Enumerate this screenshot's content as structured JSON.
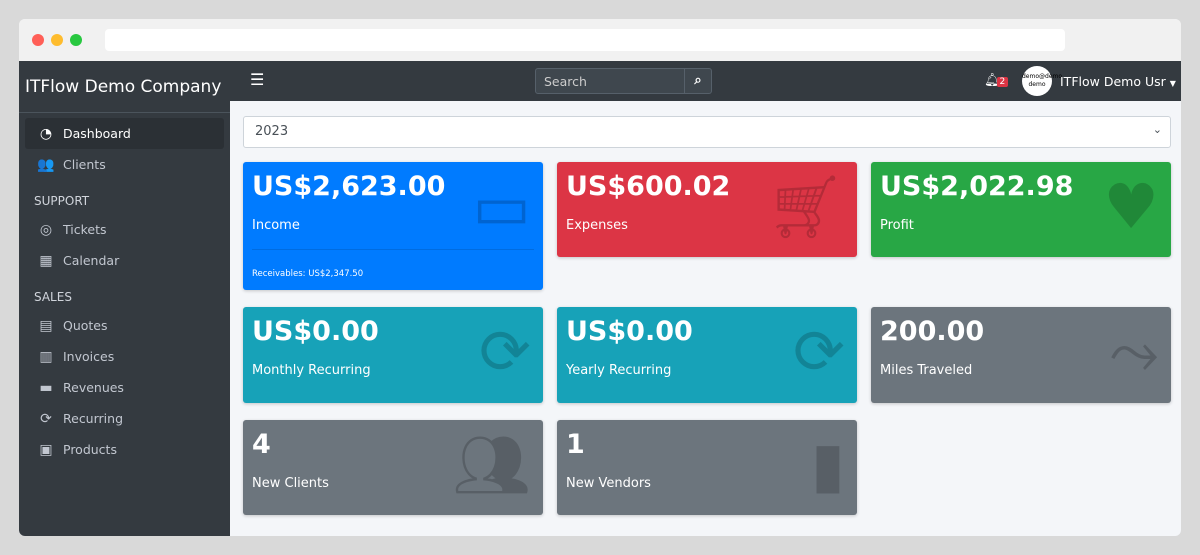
{
  "sidebar": {
    "brand": "ITFlow Demo Company",
    "items": [
      {
        "label": "Dashboard",
        "icon": "tachometer-icon"
      },
      {
        "label": "Clients",
        "icon": "users-icon"
      }
    ],
    "support_header": "SUPPORT",
    "support": [
      {
        "label": "Tickets",
        "icon": "life-ring-icon"
      },
      {
        "label": "Calendar",
        "icon": "calendar-icon"
      }
    ],
    "sales_header": "SALES",
    "sales": [
      {
        "label": "Quotes",
        "icon": "file-icon"
      },
      {
        "label": "Invoices",
        "icon": "invoice-icon"
      },
      {
        "label": "Revenues",
        "icon": "credit-card-icon"
      },
      {
        "label": "Recurring",
        "icon": "sync-icon"
      },
      {
        "label": "Products",
        "icon": "box-icon"
      }
    ]
  },
  "topbar": {
    "search_placeholder": "Search",
    "notifications": "2",
    "avatar_text": "demo@demo demo",
    "user": "ITFlow Demo Usr"
  },
  "year": "2023",
  "cards": [
    {
      "value": "US$2,623.00",
      "label": "Income",
      "footer": "Receivables: US$2,347.50",
      "color": "#007bff"
    },
    {
      "value": "US$600.02",
      "label": "Expenses",
      "color": "#dc3545"
    },
    {
      "value": "US$2,022.98",
      "label": "Profit",
      "color": "#28a745"
    },
    {
      "value": "US$0.00",
      "label": "Monthly Recurring",
      "color": "#17a2b8"
    },
    {
      "value": "US$0.00",
      "label": "Yearly Recurring",
      "color": "#17a2b8"
    },
    {
      "value": "200.00",
      "label": "Miles Traveled",
      "color": "#6c757d"
    },
    {
      "value": "4",
      "label": "New Clients",
      "color": "#6c757d"
    },
    {
      "value": "1",
      "label": "New Vendors",
      "color": "#6c757d"
    }
  ]
}
